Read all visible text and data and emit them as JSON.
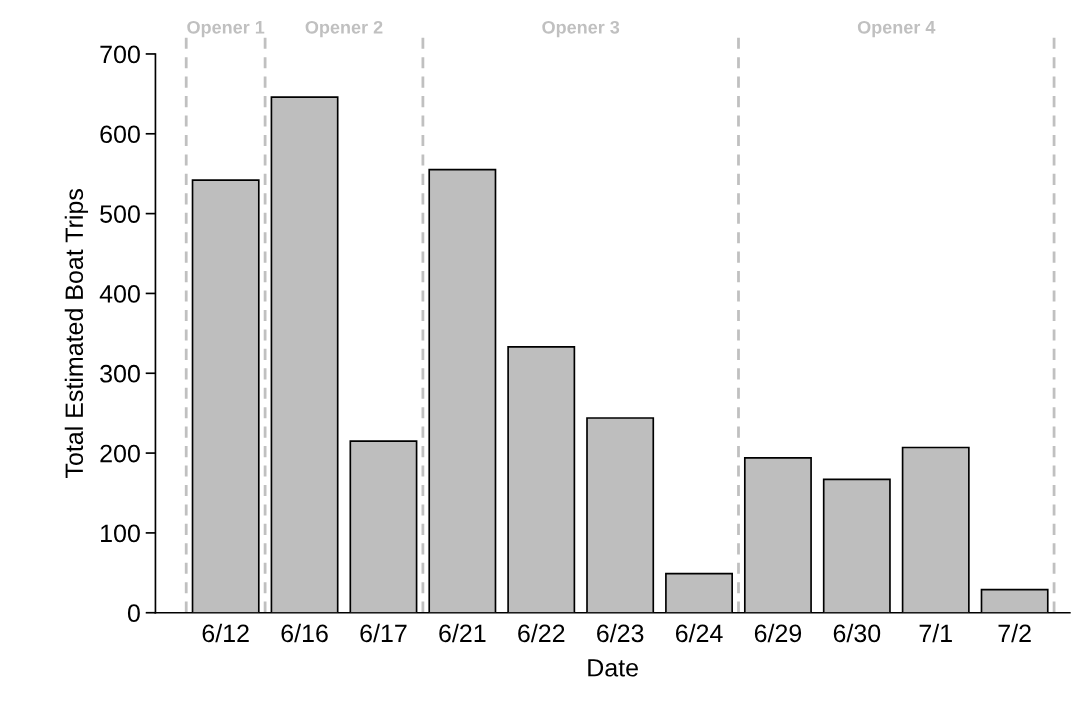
{
  "chart_data": {
    "type": "bar",
    "xlabel": "Date",
    "ylabel": "Total Estimated Boat Trips",
    "categories": [
      "6/12",
      "6/16",
      "6/17",
      "6/21",
      "6/22",
      "6/23",
      "6/24",
      "6/29",
      "6/30",
      "7/1",
      "7/2"
    ],
    "values": [
      542,
      646,
      215,
      555,
      333,
      244,
      49,
      194,
      167,
      207,
      29
    ],
    "color": "#bebebe",
    "ylim": [
      0,
      700
    ],
    "yticks": [
      0,
      100,
      200,
      300,
      400,
      500,
      600,
      700
    ],
    "grid": false,
    "annotations": [
      "Opener 1",
      "Opener 2",
      "Opener 3",
      "Opener 4"
    ]
  }
}
